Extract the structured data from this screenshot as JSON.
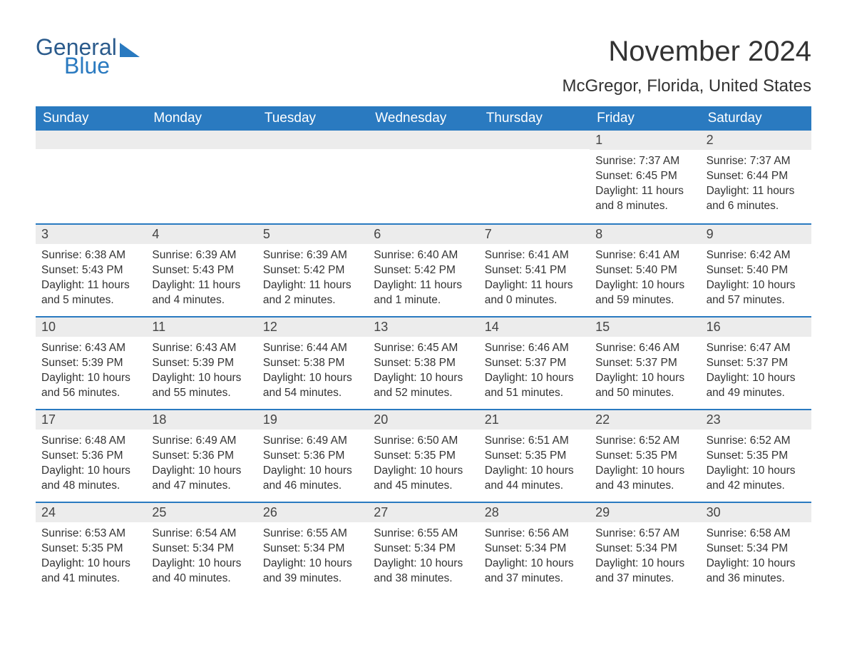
{
  "logo": {
    "text1": "General",
    "text2": "Blue"
  },
  "header": {
    "month_title": "November 2024",
    "location": "McGregor, Florida, United States"
  },
  "colors": {
    "header_bg": "#2a7ac0",
    "header_text": "#ffffff",
    "day_num_bg": "#ececec",
    "week_divider": "#2a7ac0",
    "body_text": "#333333",
    "logo_dark": "#2b5b8c",
    "logo_blue": "#2a7ac0",
    "page_bg": "#ffffff"
  },
  "weekdays": [
    "Sunday",
    "Monday",
    "Tuesday",
    "Wednesday",
    "Thursday",
    "Friday",
    "Saturday"
  ],
  "weeks": [
    [
      {
        "empty": true
      },
      {
        "empty": true
      },
      {
        "empty": true
      },
      {
        "empty": true
      },
      {
        "empty": true
      },
      {
        "day": "1",
        "sunrise": "Sunrise: 7:37 AM",
        "sunset": "Sunset: 6:45 PM",
        "daylight": "Daylight: 11 hours and 8 minutes."
      },
      {
        "day": "2",
        "sunrise": "Sunrise: 7:37 AM",
        "sunset": "Sunset: 6:44 PM",
        "daylight": "Daylight: 11 hours and 6 minutes."
      }
    ],
    [
      {
        "day": "3",
        "sunrise": "Sunrise: 6:38 AM",
        "sunset": "Sunset: 5:43 PM",
        "daylight": "Daylight: 11 hours and 5 minutes."
      },
      {
        "day": "4",
        "sunrise": "Sunrise: 6:39 AM",
        "sunset": "Sunset: 5:43 PM",
        "daylight": "Daylight: 11 hours and 4 minutes."
      },
      {
        "day": "5",
        "sunrise": "Sunrise: 6:39 AM",
        "sunset": "Sunset: 5:42 PM",
        "daylight": "Daylight: 11 hours and 2 minutes."
      },
      {
        "day": "6",
        "sunrise": "Sunrise: 6:40 AM",
        "sunset": "Sunset: 5:42 PM",
        "daylight": "Daylight: 11 hours and 1 minute."
      },
      {
        "day": "7",
        "sunrise": "Sunrise: 6:41 AM",
        "sunset": "Sunset: 5:41 PM",
        "daylight": "Daylight: 11 hours and 0 minutes."
      },
      {
        "day": "8",
        "sunrise": "Sunrise: 6:41 AM",
        "sunset": "Sunset: 5:40 PM",
        "daylight": "Daylight: 10 hours and 59 minutes."
      },
      {
        "day": "9",
        "sunrise": "Sunrise: 6:42 AM",
        "sunset": "Sunset: 5:40 PM",
        "daylight": "Daylight: 10 hours and 57 minutes."
      }
    ],
    [
      {
        "day": "10",
        "sunrise": "Sunrise: 6:43 AM",
        "sunset": "Sunset: 5:39 PM",
        "daylight": "Daylight: 10 hours and 56 minutes."
      },
      {
        "day": "11",
        "sunrise": "Sunrise: 6:43 AM",
        "sunset": "Sunset: 5:39 PM",
        "daylight": "Daylight: 10 hours and 55 minutes."
      },
      {
        "day": "12",
        "sunrise": "Sunrise: 6:44 AM",
        "sunset": "Sunset: 5:38 PM",
        "daylight": "Daylight: 10 hours and 54 minutes."
      },
      {
        "day": "13",
        "sunrise": "Sunrise: 6:45 AM",
        "sunset": "Sunset: 5:38 PM",
        "daylight": "Daylight: 10 hours and 52 minutes."
      },
      {
        "day": "14",
        "sunrise": "Sunrise: 6:46 AM",
        "sunset": "Sunset: 5:37 PM",
        "daylight": "Daylight: 10 hours and 51 minutes."
      },
      {
        "day": "15",
        "sunrise": "Sunrise: 6:46 AM",
        "sunset": "Sunset: 5:37 PM",
        "daylight": "Daylight: 10 hours and 50 minutes."
      },
      {
        "day": "16",
        "sunrise": "Sunrise: 6:47 AM",
        "sunset": "Sunset: 5:37 PM",
        "daylight": "Daylight: 10 hours and 49 minutes."
      }
    ],
    [
      {
        "day": "17",
        "sunrise": "Sunrise: 6:48 AM",
        "sunset": "Sunset: 5:36 PM",
        "daylight": "Daylight: 10 hours and 48 minutes."
      },
      {
        "day": "18",
        "sunrise": "Sunrise: 6:49 AM",
        "sunset": "Sunset: 5:36 PM",
        "daylight": "Daylight: 10 hours and 47 minutes."
      },
      {
        "day": "19",
        "sunrise": "Sunrise: 6:49 AM",
        "sunset": "Sunset: 5:36 PM",
        "daylight": "Daylight: 10 hours and 46 minutes."
      },
      {
        "day": "20",
        "sunrise": "Sunrise: 6:50 AM",
        "sunset": "Sunset: 5:35 PM",
        "daylight": "Daylight: 10 hours and 45 minutes."
      },
      {
        "day": "21",
        "sunrise": "Sunrise: 6:51 AM",
        "sunset": "Sunset: 5:35 PM",
        "daylight": "Daylight: 10 hours and 44 minutes."
      },
      {
        "day": "22",
        "sunrise": "Sunrise: 6:52 AM",
        "sunset": "Sunset: 5:35 PM",
        "daylight": "Daylight: 10 hours and 43 minutes."
      },
      {
        "day": "23",
        "sunrise": "Sunrise: 6:52 AM",
        "sunset": "Sunset: 5:35 PM",
        "daylight": "Daylight: 10 hours and 42 minutes."
      }
    ],
    [
      {
        "day": "24",
        "sunrise": "Sunrise: 6:53 AM",
        "sunset": "Sunset: 5:35 PM",
        "daylight": "Daylight: 10 hours and 41 minutes."
      },
      {
        "day": "25",
        "sunrise": "Sunrise: 6:54 AM",
        "sunset": "Sunset: 5:34 PM",
        "daylight": "Daylight: 10 hours and 40 minutes."
      },
      {
        "day": "26",
        "sunrise": "Sunrise: 6:55 AM",
        "sunset": "Sunset: 5:34 PM",
        "daylight": "Daylight: 10 hours and 39 minutes."
      },
      {
        "day": "27",
        "sunrise": "Sunrise: 6:55 AM",
        "sunset": "Sunset: 5:34 PM",
        "daylight": "Daylight: 10 hours and 38 minutes."
      },
      {
        "day": "28",
        "sunrise": "Sunrise: 6:56 AM",
        "sunset": "Sunset: 5:34 PM",
        "daylight": "Daylight: 10 hours and 37 minutes."
      },
      {
        "day": "29",
        "sunrise": "Sunrise: 6:57 AM",
        "sunset": "Sunset: 5:34 PM",
        "daylight": "Daylight: 10 hours and 37 minutes."
      },
      {
        "day": "30",
        "sunrise": "Sunrise: 6:58 AM",
        "sunset": "Sunset: 5:34 PM",
        "daylight": "Daylight: 10 hours and 36 minutes."
      }
    ]
  ]
}
